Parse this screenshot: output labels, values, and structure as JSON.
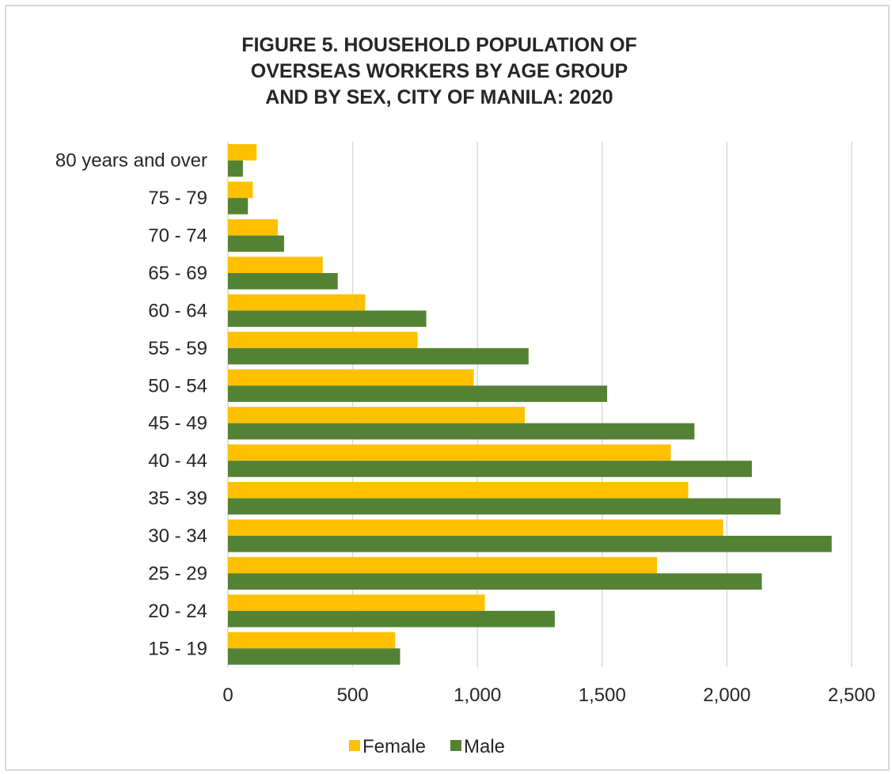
{
  "chart_data": {
    "type": "bar",
    "orientation": "horizontal",
    "title": "FIGURE 5. HOUSEHOLD POPULATION OF OVERSEAS WORKERS BY AGE GROUP AND BY SEX, CITY OF MANILA: 2020",
    "title_lines": [
      "FIGURE 5. HOUSEHOLD POPULATION OF",
      "OVERSEAS WORKERS BY AGE GROUP",
      "AND BY SEX, CITY OF MANILA: 2020"
    ],
    "categories": [
      "80 years and over",
      "75 - 79",
      "70 - 74",
      "65 - 69",
      "60 - 64",
      "55 - 59",
      "50 - 54",
      "45 - 49",
      "40 - 44",
      "35 - 39",
      "30 - 34",
      "25 - 29",
      "20 - 24",
      "15 - 19"
    ],
    "series": [
      {
        "name": "Female",
        "color": "#ffc000",
        "values": [
          115,
          100,
          200,
          380,
          550,
          760,
          985,
          1190,
          1775,
          1845,
          1985,
          1720,
          1030,
          670
        ]
      },
      {
        "name": "Male",
        "color": "#548235",
        "values": [
          60,
          80,
          225,
          440,
          795,
          1205,
          1520,
          1870,
          2100,
          2215,
          2420,
          2140,
          1310,
          690
        ]
      }
    ],
    "xlim": [
      0,
      2500
    ],
    "xticks": [
      "0",
      "500",
      "1,000",
      "1,500",
      "2,000",
      "2,500"
    ],
    "xlabel": "",
    "ylabel": "",
    "grid": true,
    "legend_position": "bottom"
  }
}
